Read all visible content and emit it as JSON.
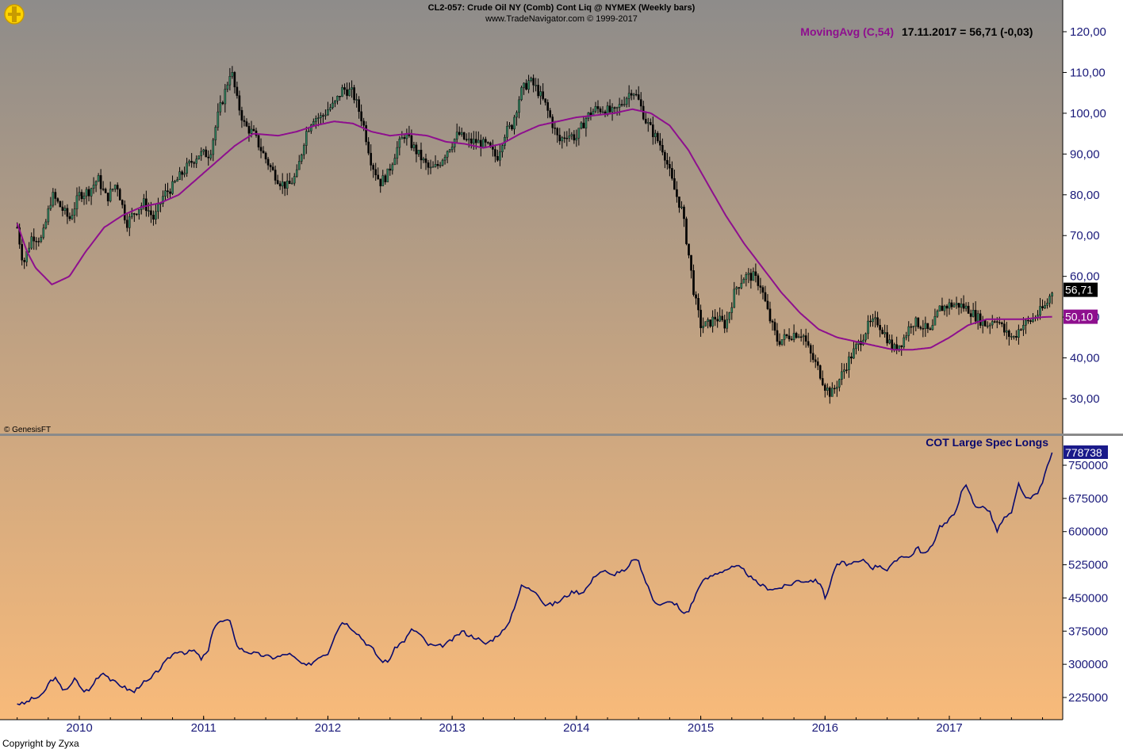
{
  "header": {
    "line1": "CL2-057:  Crude Oil NY (Comb) Cont Liq @ NYMEX  (Weekly bars)",
    "line2": "www.TradeNavigator.com © 1999-2017"
  },
  "logo_text": "GenesisFT",
  "watermark": "© GenesisFT",
  "footer": "Copyright by Zyxa",
  "colors": {
    "bg_top": "#8E8C8A",
    "bg_bottom": "#F8BA7A",
    "bar": "#000000",
    "bar_up": "#2E7D5B",
    "ma": "#8E0F8E",
    "cot": "#0A0A6E",
    "axis_text": "#1A1A7A",
    "price_label_bg": "#000000",
    "ma_label_bg": "#8E0F8E",
    "cot_label_bg": "#1A1A8A"
  },
  "chart_data": [
    {
      "type": "candlestick",
      "title": "CL2-057:  Crude Oil NY (Comb) Cont Liq @ NYMEX  (Weekly bars)",
      "ylim": [
        20,
        122
      ],
      "y_ticks": [
        "120,00",
        "110,00",
        "100,00",
        "90,00",
        "80,00",
        "70,00",
        "60,00",
        "50,00",
        "40,00",
        "30,00"
      ],
      "y_tick_values": [
        120,
        110,
        100,
        90,
        80,
        70,
        60,
        50,
        40,
        30
      ],
      "x_ticks": [
        "2010",
        "2011",
        "2012",
        "2013",
        "2014",
        "2015",
        "2016",
        "2017"
      ],
      "x_tick_years": [
        2010,
        2011,
        2012,
        2013,
        2014,
        2015,
        2016,
        2017
      ],
      "x_range": [
        2009.48,
        2017.95
      ],
      "last_value_label": "56,71",
      "last_value": 56.71,
      "ma_value_label": "50,10",
      "ma_value": 50.1,
      "legend": {
        "name": "MovingAvg (C,54)",
        "value": "17.11.2017 = 56,71 (-0,03)"
      },
      "close_keyframes": [
        [
          2009.5,
          72
        ],
        [
          2009.55,
          63
        ],
        [
          2009.62,
          70
        ],
        [
          2009.7,
          69
        ],
        [
          2009.78,
          80
        ],
        [
          2009.85,
          77
        ],
        [
          2009.92,
          74
        ],
        [
          2010.0,
          80
        ],
        [
          2010.08,
          81
        ],
        [
          2010.15,
          84
        ],
        [
          2010.22,
          79
        ],
        [
          2010.3,
          83
        ],
        [
          2010.38,
          73
        ],
        [
          2010.45,
          76
        ],
        [
          2010.52,
          78
        ],
        [
          2010.6,
          74
        ],
        [
          2010.68,
          80
        ],
        [
          2010.75,
          82
        ],
        [
          2010.82,
          85
        ],
        [
          2010.9,
          88
        ],
        [
          2010.96,
          90
        ],
        [
          2011.05,
          90
        ],
        [
          2011.12,
          100
        ],
        [
          2011.18,
          106
        ],
        [
          2011.22,
          111
        ],
        [
          2011.27,
          103
        ],
        [
          2011.33,
          97
        ],
        [
          2011.4,
          95
        ],
        [
          2011.48,
          90
        ],
        [
          2011.55,
          86
        ],
        [
          2011.62,
          83
        ],
        [
          2011.68,
          82
        ],
        [
          2011.75,
          85
        ],
        [
          2011.82,
          95
        ],
        [
          2011.88,
          99
        ],
        [
          2011.95,
          99
        ],
        [
          2012.0,
          101
        ],
        [
          2012.05,
          102
        ],
        [
          2012.12,
          106
        ],
        [
          2012.2,
          105
        ],
        [
          2012.28,
          98
        ],
        [
          2012.35,
          88
        ],
        [
          2012.42,
          83
        ],
        [
          2012.48,
          85
        ],
        [
          2012.55,
          91
        ],
        [
          2012.62,
          95
        ],
        [
          2012.68,
          92
        ],
        [
          2012.75,
          89
        ],
        [
          2012.82,
          86
        ],
        [
          2012.88,
          87
        ],
        [
          2012.96,
          91
        ],
        [
          2013.05,
          95
        ],
        [
          2013.12,
          93
        ],
        [
          2013.2,
          93
        ],
        [
          2013.28,
          92
        ],
        [
          2013.36,
          89
        ],
        [
          2013.42,
          95
        ],
        [
          2013.48,
          97
        ],
        [
          2013.55,
          105
        ],
        [
          2013.62,
          108
        ],
        [
          2013.68,
          106
        ],
        [
          2013.75,
          102
        ],
        [
          2013.8,
          98
        ],
        [
          2013.86,
          93
        ],
        [
          2013.92,
          95
        ],
        [
          2014.0,
          94
        ],
        [
          2014.08,
          99
        ],
        [
          2014.15,
          101
        ],
        [
          2014.22,
          101
        ],
        [
          2014.3,
          100
        ],
        [
          2014.38,
          103
        ],
        [
          2014.45,
          106
        ],
        [
          2014.5,
          103
        ],
        [
          2014.56,
          98
        ],
        [
          2014.62,
          95
        ],
        [
          2014.7,
          91
        ],
        [
          2014.78,
          82
        ],
        [
          2014.85,
          76
        ],
        [
          2014.9,
          66
        ],
        [
          2014.95,
          55
        ],
        [
          2015.0,
          48
        ],
        [
          2015.05,
          48
        ],
        [
          2015.12,
          50
        ],
        [
          2015.2,
          48
        ],
        [
          2015.28,
          57
        ],
        [
          2015.35,
          60
        ],
        [
          2015.42,
          60
        ],
        [
          2015.48,
          58
        ],
        [
          2015.55,
          50
        ],
        [
          2015.62,
          44
        ],
        [
          2015.68,
          45
        ],
        [
          2015.75,
          46
        ],
        [
          2015.82,
          46
        ],
        [
          2015.88,
          41
        ],
        [
          2015.95,
          37
        ],
        [
          2016.0,
          33
        ],
        [
          2016.05,
          31
        ],
        [
          2016.12,
          35
        ],
        [
          2016.2,
          40
        ],
        [
          2016.28,
          44
        ],
        [
          2016.35,
          48
        ],
        [
          2016.42,
          49
        ],
        [
          2016.48,
          46
        ],
        [
          2016.55,
          42
        ],
        [
          2016.62,
          44
        ],
        [
          2016.7,
          49
        ],
        [
          2016.78,
          48
        ],
        [
          2016.85,
          46
        ],
        [
          2016.92,
          52
        ],
        [
          2017.0,
          53
        ],
        [
          2017.08,
          53
        ],
        [
          2017.15,
          52
        ],
        [
          2017.22,
          50
        ],
        [
          2017.3,
          48
        ],
        [
          2017.38,
          50
        ],
        [
          2017.45,
          46
        ],
        [
          2017.52,
          45
        ],
        [
          2017.58,
          48
        ],
        [
          2017.65,
          49
        ],
        [
          2017.72,
          51
        ],
        [
          2017.78,
          53
        ],
        [
          2017.83,
          56.7
        ]
      ],
      "ma_keyframes": [
        [
          2009.5,
          73
        ],
        [
          2009.58,
          66
        ],
        [
          2009.65,
          62
        ],
        [
          2009.78,
          58
        ],
        [
          2009.92,
          60
        ],
        [
          2010.05,
          66
        ],
        [
          2010.2,
          72
        ],
        [
          2010.35,
          75
        ],
        [
          2010.5,
          77
        ],
        [
          2010.65,
          78
        ],
        [
          2010.8,
          80
        ],
        [
          2010.95,
          84
        ],
        [
          2011.1,
          88
        ],
        [
          2011.25,
          92
        ],
        [
          2011.4,
          95
        ],
        [
          2011.6,
          94.5
        ],
        [
          2011.75,
          95.5
        ],
        [
          2011.9,
          97
        ],
        [
          2012.05,
          98
        ],
        [
          2012.2,
          97.5
        ],
        [
          2012.35,
          95.5
        ],
        [
          2012.5,
          94.5
        ],
        [
          2012.65,
          95
        ],
        [
          2012.8,
          94.5
        ],
        [
          2012.95,
          93
        ],
        [
          2013.1,
          92.5
        ],
        [
          2013.25,
          91.5
        ],
        [
          2013.4,
          92.5
        ],
        [
          2013.55,
          95
        ],
        [
          2013.7,
          97
        ],
        [
          2013.85,
          98
        ],
        [
          2014.0,
          99
        ],
        [
          2014.15,
          99.5
        ],
        [
          2014.3,
          100
        ],
        [
          2014.45,
          101
        ],
        [
          2014.6,
          100
        ],
        [
          2014.75,
          97
        ],
        [
          2014.9,
          91
        ],
        [
          2015.05,
          83
        ],
        [
          2015.2,
          75
        ],
        [
          2015.35,
          68
        ],
        [
          2015.5,
          62
        ],
        [
          2015.65,
          56
        ],
        [
          2015.8,
          51
        ],
        [
          2015.95,
          47
        ],
        [
          2016.1,
          45
        ],
        [
          2016.25,
          44
        ],
        [
          2016.4,
          43
        ],
        [
          2016.55,
          42
        ],
        [
          2016.7,
          42
        ],
        [
          2016.85,
          42.5
        ],
        [
          2017.0,
          45
        ],
        [
          2017.15,
          48
        ],
        [
          2017.3,
          49.5
        ],
        [
          2017.45,
          49.5
        ],
        [
          2017.6,
          49.5
        ],
        [
          2017.75,
          50
        ],
        [
          2017.83,
          50.1
        ]
      ]
    },
    {
      "type": "line",
      "title": "COT Large Spec Longs",
      "ylim": [
        180000,
        795000
      ],
      "y_ticks": [
        "750000",
        "675000",
        "600000",
        "525000",
        "450000",
        "375000",
        "300000",
        "225000"
      ],
      "y_tick_values": [
        750000,
        675000,
        600000,
        525000,
        450000,
        375000,
        300000,
        225000
      ],
      "last_value_label": "778738",
      "last_value": 778738,
      "series_keyframes": [
        [
          2009.5,
          212000
        ],
        [
          2009.55,
          210000
        ],
        [
          2009.62,
          222000
        ],
        [
          2009.7,
          228000
        ],
        [
          2009.76,
          260000
        ],
        [
          2009.8,
          270000
        ],
        [
          2009.86,
          245000
        ],
        [
          2009.92,
          246000
        ],
        [
          2009.97,
          270000
        ],
        [
          2010.02,
          242000
        ],
        [
          2010.08,
          240000
        ],
        [
          2010.14,
          270000
        ],
        [
          2010.2,
          283000
        ],
        [
          2010.26,
          262000
        ],
        [
          2010.32,
          255000
        ],
        [
          2010.38,
          245000
        ],
        [
          2010.44,
          237000
        ],
        [
          2010.5,
          257000
        ],
        [
          2010.56,
          262000
        ],
        [
          2010.62,
          282000
        ],
        [
          2010.68,
          300000
        ],
        [
          2010.74,
          320000
        ],
        [
          2010.8,
          332000
        ],
        [
          2010.86,
          325000
        ],
        [
          2010.92,
          332000
        ],
        [
          2010.98,
          312000
        ],
        [
          2011.04,
          330000
        ],
        [
          2011.08,
          385000
        ],
        [
          2011.12,
          395000
        ],
        [
          2011.18,
          398000
        ],
        [
          2011.22,
          395000
        ],
        [
          2011.27,
          340000
        ],
        [
          2011.33,
          330000
        ],
        [
          2011.4,
          325000
        ],
        [
          2011.48,
          320000
        ],
        [
          2011.55,
          315000
        ],
        [
          2011.62,
          318000
        ],
        [
          2011.68,
          325000
        ],
        [
          2011.75,
          310000
        ],
        [
          2011.82,
          295000
        ],
        [
          2011.88,
          305000
        ],
        [
          2011.94,
          320000
        ],
        [
          2012.0,
          325000
        ],
        [
          2012.06,
          370000
        ],
        [
          2012.12,
          398000
        ],
        [
          2012.18,
          385000
        ],
        [
          2012.24,
          370000
        ],
        [
          2012.3,
          350000
        ],
        [
          2012.36,
          335000
        ],
        [
          2012.42,
          310000
        ],
        [
          2012.48,
          305000
        ],
        [
          2012.55,
          340000
        ],
        [
          2012.62,
          355000
        ],
        [
          2012.68,
          380000
        ],
        [
          2012.74,
          368000
        ],
        [
          2012.8,
          345000
        ],
        [
          2012.88,
          340000
        ],
        [
          2012.95,
          345000
        ],
        [
          2013.02,
          360000
        ],
        [
          2013.08,
          375000
        ],
        [
          2013.14,
          365000
        ],
        [
          2013.2,
          360000
        ],
        [
          2013.26,
          345000
        ],
        [
          2013.32,
          355000
        ],
        [
          2013.38,
          370000
        ],
        [
          2013.44,
          382000
        ],
        [
          2013.5,
          430000
        ],
        [
          2013.56,
          478000
        ],
        [
          2013.62,
          470000
        ],
        [
          2013.68,
          465000
        ],
        [
          2013.74,
          435000
        ],
        [
          2013.8,
          435000
        ],
        [
          2013.86,
          442000
        ],
        [
          2013.92,
          455000
        ],
        [
          2013.98,
          465000
        ],
        [
          2014.04,
          462000
        ],
        [
          2014.1,
          478000
        ],
        [
          2014.16,
          505000
        ],
        [
          2014.22,
          512000
        ],
        [
          2014.28,
          500000
        ],
        [
          2014.34,
          510000
        ],
        [
          2014.4,
          510000
        ],
        [
          2014.46,
          540000
        ],
        [
          2014.5,
          530000
        ],
        [
          2014.56,
          485000
        ],
        [
          2014.62,
          445000
        ],
        [
          2014.68,
          435000
        ],
        [
          2014.74,
          440000
        ],
        [
          2014.8,
          438000
        ],
        [
          2014.85,
          415000
        ],
        [
          2014.9,
          420000
        ],
        [
          2014.95,
          450000
        ],
        [
          2015.0,
          485000
        ],
        [
          2015.06,
          495000
        ],
        [
          2015.12,
          505000
        ],
        [
          2015.18,
          512000
        ],
        [
          2015.24,
          518000
        ],
        [
          2015.3,
          520000
        ],
        [
          2015.36,
          510000
        ],
        [
          2015.42,
          490000
        ],
        [
          2015.48,
          480000
        ],
        [
          2015.54,
          472000
        ],
        [
          2015.6,
          470000
        ],
        [
          2015.66,
          475000
        ],
        [
          2015.72,
          480000
        ],
        [
          2015.78,
          490000
        ],
        [
          2015.84,
          488000
        ],
        [
          2015.9,
          490000
        ],
        [
          2015.96,
          485000
        ],
        [
          2016.0,
          450000
        ],
        [
          2016.04,
          480000
        ],
        [
          2016.08,
          520000
        ],
        [
          2016.14,
          530000
        ],
        [
          2016.2,
          525000
        ],
        [
          2016.26,
          530000
        ],
        [
          2016.32,
          535000
        ],
        [
          2016.38,
          518000
        ],
        [
          2016.44,
          525000
        ],
        [
          2016.5,
          512000
        ],
        [
          2016.56,
          530000
        ],
        [
          2016.62,
          548000
        ],
        [
          2016.68,
          540000
        ],
        [
          2016.74,
          565000
        ],
        [
          2016.8,
          548000
        ],
        [
          2016.86,
          565000
        ],
        [
          2016.92,
          612000
        ],
        [
          2016.98,
          620000
        ],
        [
          2017.04,
          640000
        ],
        [
          2017.1,
          690000
        ],
        [
          2017.14,
          705000
        ],
        [
          2017.2,
          660000
        ],
        [
          2017.26,
          655000
        ],
        [
          2017.32,
          650000
        ],
        [
          2017.38,
          600000
        ],
        [
          2017.44,
          630000
        ],
        [
          2017.5,
          640000
        ],
        [
          2017.56,
          710000
        ],
        [
          2017.62,
          670000
        ],
        [
          2017.68,
          680000
        ],
        [
          2017.74,
          700000
        ],
        [
          2017.8,
          760000
        ],
        [
          2017.83,
          778738
        ]
      ]
    }
  ]
}
